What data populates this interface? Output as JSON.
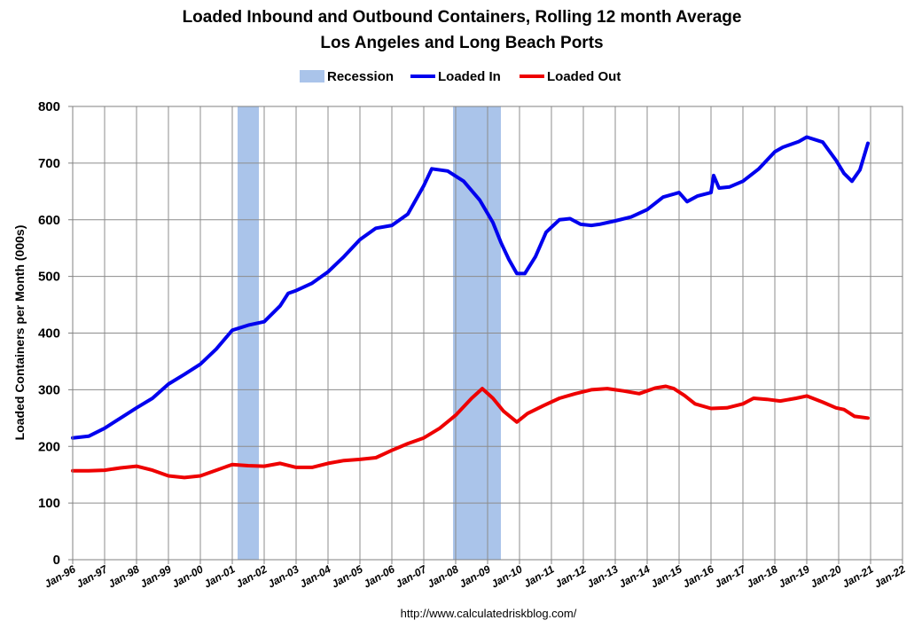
{
  "chart_data": {
    "type": "line",
    "title": "Loaded Inbound and Outbound Containers, Rolling 12 month Average",
    "subtitle": "Los Angeles and Long Beach Ports",
    "xlabel": "",
    "ylabel": "Loaded Containers per Month (000s)",
    "source": "http://www.calculatedriskblog.com/",
    "ylim": [
      0,
      800
    ],
    "yticks": [
      "0",
      "100",
      "200",
      "300",
      "400",
      "500",
      "600",
      "700",
      "800"
    ],
    "xlim": [
      "1996-01",
      "2022-01"
    ],
    "xticks": [
      "Jan-96",
      "Jan-97",
      "Jan-98",
      "Jan-99",
      "Jan-00",
      "Jan-01",
      "Jan-02",
      "Jan-03",
      "Jan-04",
      "Jan-05",
      "Jan-06",
      "Jan-07",
      "Jan-08",
      "Jan-09",
      "Jan-10",
      "Jan-11",
      "Jan-12",
      "Jan-13",
      "Jan-14",
      "Jan-15",
      "Jan-16",
      "Jan-17",
      "Jan-18",
      "Jan-19",
      "Jan-20",
      "Jan-21",
      "Jan-22"
    ],
    "grid": true,
    "legend": "top-center",
    "legend_items": [
      "Recession",
      "Loaded In",
      "Loaded Out"
    ],
    "recessions": [
      {
        "start": "2001-03",
        "end": "2001-11"
      },
      {
        "start": "2007-12",
        "end": "2009-06"
      }
    ],
    "series": [
      {
        "name": "Loaded In",
        "color": "#0000ee",
        "points": [
          [
            "1996-01",
            215
          ],
          [
            "1996-07",
            218
          ],
          [
            "1997-01",
            232
          ],
          [
            "1997-07",
            250
          ],
          [
            "1998-01",
            268
          ],
          [
            "1998-07",
            285
          ],
          [
            "1999-01",
            310
          ],
          [
            "1999-07",
            327
          ],
          [
            "2000-01",
            345
          ],
          [
            "2000-07",
            372
          ],
          [
            "2001-01",
            405
          ],
          [
            "2001-07",
            414
          ],
          [
            "2002-01",
            420
          ],
          [
            "2002-07",
            448
          ],
          [
            "2002-10",
            470
          ],
          [
            "2003-01",
            475
          ],
          [
            "2003-07",
            488
          ],
          [
            "2004-01",
            508
          ],
          [
            "2004-07",
            535
          ],
          [
            "2005-01",
            565
          ],
          [
            "2005-07",
            585
          ],
          [
            "2006-01",
            590
          ],
          [
            "2006-07",
            610
          ],
          [
            "2007-01",
            660
          ],
          [
            "2007-04",
            690
          ],
          [
            "2007-10",
            686
          ],
          [
            "2008-04",
            668
          ],
          [
            "2008-10",
            635
          ],
          [
            "2009-03",
            595
          ],
          [
            "2009-06",
            560
          ],
          [
            "2009-09",
            530
          ],
          [
            "2009-12",
            505
          ],
          [
            "2010-03",
            505
          ],
          [
            "2010-07",
            535
          ],
          [
            "2010-11",
            578
          ],
          [
            "2011-04",
            600
          ],
          [
            "2011-08",
            602
          ],
          [
            "2011-12",
            592
          ],
          [
            "2012-04",
            590
          ],
          [
            "2012-07",
            592
          ],
          [
            "2013-01",
            598
          ],
          [
            "2013-07",
            605
          ],
          [
            "2014-01",
            618
          ],
          [
            "2014-07",
            640
          ],
          [
            "2015-01",
            648
          ],
          [
            "2015-04",
            632
          ],
          [
            "2015-08",
            642
          ],
          [
            "2016-01",
            648
          ],
          [
            "2016-02",
            678
          ],
          [
            "2016-04",
            656
          ],
          [
            "2016-08",
            658
          ],
          [
            "2017-01",
            668
          ],
          [
            "2017-07",
            690
          ],
          [
            "2018-01",
            720
          ],
          [
            "2018-04",
            728
          ],
          [
            "2018-10",
            738
          ],
          [
            "2019-01",
            746
          ],
          [
            "2019-07",
            737
          ],
          [
            "2019-12",
            705
          ],
          [
            "2020-03",
            682
          ],
          [
            "2020-06",
            668
          ],
          [
            "2020-09",
            688
          ],
          [
            "2020-12",
            735
          ]
        ]
      },
      {
        "name": "Loaded Out",
        "color": "#ee0000",
        "points": [
          [
            "1996-01",
            157
          ],
          [
            "1996-07",
            157
          ],
          [
            "1997-01",
            158
          ],
          [
            "1997-07",
            162
          ],
          [
            "1998-01",
            165
          ],
          [
            "1998-07",
            158
          ],
          [
            "1999-01",
            148
          ],
          [
            "1999-07",
            145
          ],
          [
            "2000-01",
            148
          ],
          [
            "2000-07",
            158
          ],
          [
            "2001-01",
            168
          ],
          [
            "2001-07",
            166
          ],
          [
            "2002-01",
            165
          ],
          [
            "2002-07",
            170
          ],
          [
            "2003-01",
            163
          ],
          [
            "2003-07",
            163
          ],
          [
            "2004-01",
            170
          ],
          [
            "2004-07",
            175
          ],
          [
            "2005-01",
            177
          ],
          [
            "2005-07",
            180
          ],
          [
            "2006-01",
            193
          ],
          [
            "2006-07",
            205
          ],
          [
            "2007-01",
            215
          ],
          [
            "2007-07",
            232
          ],
          [
            "2008-01",
            255
          ],
          [
            "2008-07",
            285
          ],
          [
            "2008-11",
            302
          ],
          [
            "2009-03",
            285
          ],
          [
            "2009-07",
            262
          ],
          [
            "2009-12",
            243
          ],
          [
            "2010-04",
            258
          ],
          [
            "2010-10",
            272
          ],
          [
            "2011-04",
            285
          ],
          [
            "2011-10",
            293
          ],
          [
            "2012-04",
            300
          ],
          [
            "2012-10",
            302
          ],
          [
            "2013-04",
            298
          ],
          [
            "2013-10",
            293
          ],
          [
            "2014-04",
            303
          ],
          [
            "2014-08",
            306
          ],
          [
            "2014-11",
            302
          ],
          [
            "2015-03",
            290
          ],
          [
            "2015-07",
            275
          ],
          [
            "2016-01",
            267
          ],
          [
            "2016-07",
            268
          ],
          [
            "2017-01",
            275
          ],
          [
            "2017-05",
            285
          ],
          [
            "2017-10",
            283
          ],
          [
            "2018-03",
            280
          ],
          [
            "2018-09",
            285
          ],
          [
            "2019-01",
            289
          ],
          [
            "2019-07",
            278
          ],
          [
            "2019-12",
            268
          ],
          [
            "2020-03",
            265
          ],
          [
            "2020-07",
            253
          ],
          [
            "2020-12",
            250
          ]
        ]
      }
    ]
  }
}
